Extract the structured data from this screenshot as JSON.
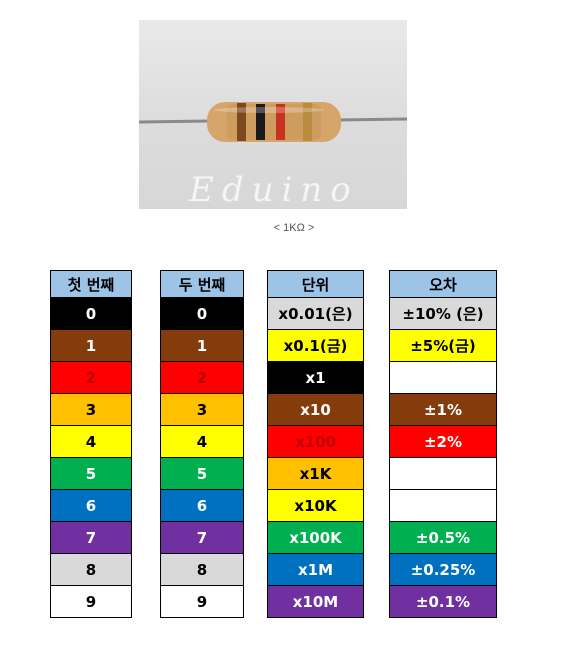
{
  "photo": {
    "watermark": "Eduino"
  },
  "caption": "< 1KΩ >",
  "tables": {
    "first_digit": {
      "header": "첫 번째",
      "rows": [
        "0",
        "1",
        "2",
        "3",
        "4",
        "5",
        "6",
        "7",
        "8",
        "9"
      ]
    },
    "second_digit": {
      "header": "두 번째",
      "rows": [
        "0",
        "1",
        "2",
        "3",
        "4",
        "5",
        "6",
        "7",
        "8",
        "9"
      ]
    },
    "multiplier": {
      "header": "단위",
      "rows": [
        "x0.01(은)",
        "x0.1(금)",
        "x1",
        "x10",
        "x100",
        "x1K",
        "x10K",
        "x100K",
        "x1M",
        "x10M"
      ]
    },
    "tolerance": {
      "header": "오차",
      "rows": [
        "±10% (은)",
        "±5%(금)",
        "",
        "±1%",
        "±2%",
        "",
        "",
        "±0.5%",
        "±0.25%",
        "±0.1%"
      ]
    }
  },
  "colors": {
    "header": "#9dc3e6",
    "black": "#000000",
    "brown": "#843c0c",
    "red": "#ff0000",
    "orange": "#ffc000",
    "yellow": "#ffff00",
    "green": "#00b050",
    "blue": "#0070c0",
    "purple": "#7030a0",
    "gray": "#d9d9d9",
    "white": "#ffffff",
    "silver": "#d9d9d9",
    "gold": "#ffff00"
  }
}
